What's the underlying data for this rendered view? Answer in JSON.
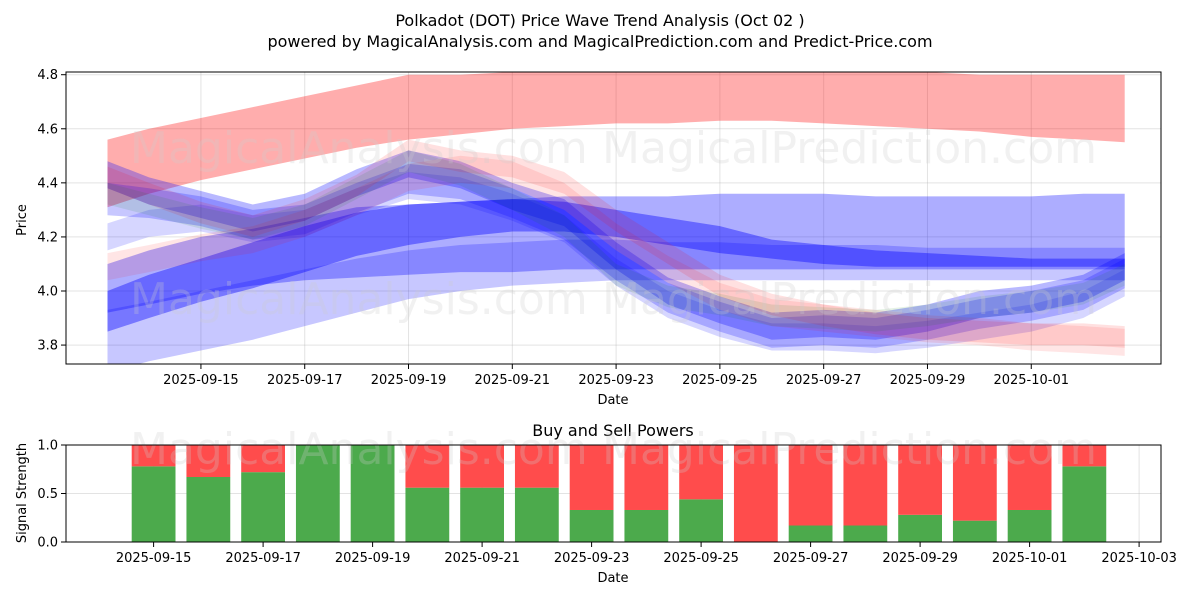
{
  "title": {
    "line1": "Polkadot (DOT) Price Wave Trend Analysis (Oct 02 )",
    "line2": "powered by MagicalAnalysis.com and MagicalPrediction.com and Predict-Price.com"
  },
  "watermarks": [
    "MagicalAnalysis.com",
    "MagicalPrediction.com"
  ],
  "chart_data": [
    {
      "type": "area",
      "title": "",
      "xlabel": "Date",
      "ylabel": "Price",
      "ylim": [
        3.73,
        4.81
      ],
      "grid": true,
      "x_ticks": [
        "2025-09-15",
        "2025-09-17",
        "2025-09-19",
        "2025-09-21",
        "2025-09-23",
        "2025-09-25",
        "2025-09-27",
        "2025-09-29",
        "2025-10-01"
      ],
      "y_ticks": [
        "3.8",
        "4.0",
        "4.2",
        "4.4",
        "4.6",
        "4.8"
      ],
      "x": [
        13.2,
        14,
        15,
        16,
        17,
        18,
        19,
        20,
        21,
        22,
        23,
        24,
        25,
        26,
        27,
        28,
        29,
        30,
        31,
        32,
        32.8
      ],
      "series": [
        {
          "name": "red upper band",
          "color": "#ff0000",
          "alpha": 0.32,
          "upper": [
            4.56,
            4.6,
            4.64,
            4.68,
            4.72,
            4.76,
            4.8,
            4.8,
            4.81,
            4.81,
            4.81,
            4.81,
            4.81,
            4.81,
            4.81,
            4.81,
            4.81,
            4.8,
            4.8,
            4.8,
            4.8
          ],
          "lower": [
            4.31,
            4.36,
            4.41,
            4.45,
            4.49,
            4.53,
            4.56,
            4.58,
            4.6,
            4.61,
            4.62,
            4.62,
            4.63,
            4.63,
            4.62,
            4.61,
            4.6,
            4.59,
            4.57,
            4.56,
            4.55
          ]
        },
        {
          "name": "blue rising band",
          "color": "#0000ff",
          "alpha": 0.32,
          "upper": [
            4.1,
            4.15,
            4.2,
            4.23,
            4.27,
            4.31,
            4.32,
            4.33,
            4.34,
            4.35,
            4.35,
            4.35,
            4.36,
            4.36,
            4.36,
            4.35,
            4.35,
            4.35,
            4.35,
            4.36,
            4.36
          ],
          "lower": [
            3.92,
            3.95,
            3.99,
            4.02,
            4.04,
            4.05,
            4.06,
            4.07,
            4.07,
            4.08,
            4.08,
            4.08,
            4.08,
            4.08,
            4.08,
            4.08,
            4.08,
            4.08,
            4.08,
            4.08,
            4.08
          ]
        },
        {
          "name": "blue trend band",
          "color": "#0000ff",
          "alpha": 0.4,
          "upper": [
            4.0,
            4.06,
            4.12,
            4.18,
            4.24,
            4.29,
            4.32,
            4.33,
            4.34,
            4.33,
            4.3,
            4.27,
            4.24,
            4.19,
            4.17,
            4.15,
            4.14,
            4.13,
            4.12,
            4.12,
            4.12
          ],
          "lower": [
            3.85,
            3.9,
            3.96,
            4.01,
            4.07,
            4.13,
            4.17,
            4.2,
            4.22,
            4.22,
            4.2,
            4.17,
            4.14,
            4.12,
            4.1,
            4.09,
            4.09,
            4.09,
            4.09,
            4.09,
            4.09
          ]
        },
        {
          "name": "light blue lower band",
          "color": "#0000ff",
          "alpha": 0.22,
          "upper": [
            3.93,
            3.96,
            4.0,
            4.04,
            4.08,
            4.12,
            4.15,
            4.17,
            4.18,
            4.19,
            4.19,
            4.18,
            4.18,
            4.17,
            4.17,
            4.17,
            4.16,
            4.16,
            4.16,
            4.16,
            4.16
          ],
          "lower": [
            3.7,
            3.74,
            3.78,
            3.82,
            3.87,
            3.92,
            3.97,
            4.0,
            4.02,
            4.03,
            4.04,
            4.04,
            4.04,
            4.04,
            4.04,
            4.04,
            4.04,
            4.04,
            4.04,
            4.04,
            4.04
          ]
        },
        {
          "name": "wave 1",
          "color": "#0000ff",
          "alpha": 0.28,
          "upper": [
            4.48,
            4.42,
            4.37,
            4.32,
            4.36,
            4.45,
            4.52,
            4.48,
            4.4,
            4.34,
            4.18,
            4.05,
            3.98,
            3.92,
            3.93,
            3.92,
            3.95,
            4.0,
            4.02,
            4.06,
            4.14
          ],
          "lower": [
            4.38,
            4.32,
            4.27,
            4.22,
            4.26,
            4.35,
            4.42,
            4.38,
            4.3,
            4.24,
            4.08,
            3.95,
            3.88,
            3.82,
            3.83,
            3.82,
            3.85,
            3.9,
            3.92,
            3.96,
            4.04
          ]
        },
        {
          "name": "wave 2",
          "color": "#0000ff",
          "alpha": 0.22,
          "upper": [
            4.4,
            4.38,
            4.35,
            4.3,
            4.32,
            4.4,
            4.47,
            4.45,
            4.38,
            4.3,
            4.15,
            4.03,
            3.96,
            3.9,
            3.91,
            3.9,
            3.93,
            3.97,
            4.0,
            4.04,
            4.12
          ],
          "lower": [
            4.28,
            4.27,
            4.24,
            4.19,
            4.21,
            4.29,
            4.36,
            4.34,
            4.27,
            4.19,
            4.04,
            3.92,
            3.85,
            3.79,
            3.8,
            3.79,
            3.82,
            3.86,
            3.89,
            3.93,
            4.01
          ]
        },
        {
          "name": "wave 3",
          "color": "#0000ff",
          "alpha": 0.16,
          "upper": [
            4.25,
            4.3,
            4.32,
            4.28,
            4.3,
            4.38,
            4.44,
            4.42,
            4.36,
            4.28,
            4.12,
            4.0,
            3.93,
            3.88,
            3.88,
            3.87,
            3.89,
            3.92,
            3.95,
            4.0,
            4.08
          ],
          "lower": [
            4.15,
            4.2,
            4.22,
            4.18,
            4.2,
            4.28,
            4.34,
            4.32,
            4.26,
            4.18,
            4.02,
            3.9,
            3.83,
            3.78,
            3.78,
            3.77,
            3.79,
            3.82,
            3.85,
            3.9,
            3.98
          ]
        },
        {
          "name": "wave 4",
          "color": "#ff0000",
          "alpha": 0.12,
          "upper": [
            4.46,
            4.4,
            4.33,
            4.28,
            4.34,
            4.43,
            4.56,
            4.52,
            4.5,
            4.44,
            4.3,
            4.18,
            4.06,
            3.99,
            3.95,
            3.92,
            3.9,
            3.89,
            3.88,
            3.88,
            3.87
          ],
          "lower": [
            4.38,
            4.32,
            4.25,
            4.2,
            4.26,
            4.35,
            4.48,
            4.44,
            4.42,
            4.36,
            4.22,
            4.1,
            3.98,
            3.91,
            3.87,
            3.84,
            3.82,
            3.81,
            3.8,
            3.8,
            3.79
          ]
        },
        {
          "name": "wave 5",
          "color": "#ff0000",
          "alpha": 0.1,
          "upper": [
            4.14,
            4.17,
            4.21,
            4.24,
            4.3,
            4.38,
            4.47,
            4.5,
            4.48,
            4.4,
            4.25,
            4.13,
            4.03,
            3.97,
            3.95,
            3.93,
            3.91,
            3.9,
            3.88,
            3.87,
            3.86
          ],
          "lower": [
            4.04,
            4.07,
            4.11,
            4.14,
            4.2,
            4.28,
            4.37,
            4.4,
            4.38,
            4.3,
            4.15,
            4.03,
            3.93,
            3.87,
            3.85,
            3.83,
            3.81,
            3.8,
            3.78,
            3.77,
            3.76
          ]
        },
        {
          "name": "wave 6",
          "color": "#008000",
          "alpha": 0.1,
          "upper": [
            4.4,
            4.36,
            4.31,
            4.27,
            4.32,
            4.42,
            4.52,
            4.47,
            4.38,
            4.28,
            4.1,
            4.02,
            3.99,
            3.95,
            3.94,
            3.93,
            3.95,
            3.98,
            4.0,
            4.03,
            4.1
          ],
          "lower": [
            4.32,
            4.28,
            4.23,
            4.19,
            4.24,
            4.34,
            4.44,
            4.39,
            4.3,
            4.2,
            4.02,
            3.94,
            3.91,
            3.87,
            3.86,
            3.85,
            3.87,
            3.9,
            3.92,
            3.95,
            4.02
          ]
        }
      ]
    },
    {
      "type": "bar",
      "title": "Buy and Sell Powers",
      "xlabel": "Date",
      "ylabel": "Signal Strength",
      "ylim": [
        0,
        1
      ],
      "grid": true,
      "x_ticks": [
        "2025-09-15",
        "2025-09-17",
        "2025-09-19",
        "2025-09-21",
        "2025-09-23",
        "2025-09-25",
        "2025-09-27",
        "2025-09-29",
        "2025-10-01",
        "2025-10-03"
      ],
      "y_ticks": [
        "0.0",
        "0.5",
        "1.0"
      ],
      "categories": [
        "2025-09-15",
        "2025-09-16",
        "2025-09-17",
        "2025-09-18",
        "2025-09-19",
        "2025-09-20",
        "2025-09-21",
        "2025-09-22",
        "2025-09-23",
        "2025-09-24",
        "2025-09-25",
        "2025-09-26",
        "2025-09-27",
        "2025-09-28",
        "2025-09-29",
        "2025-09-30",
        "2025-10-01",
        "2025-10-02"
      ],
      "series": [
        {
          "name": "Buy",
          "color": "#4caa4c",
          "values": [
            0.78,
            0.67,
            0.72,
            1.0,
            1.0,
            0.56,
            0.56,
            0.56,
            0.33,
            0.33,
            0.44,
            0.0,
            0.17,
            0.17,
            0.28,
            0.22,
            0.33,
            0.78
          ]
        },
        {
          "name": "Sell",
          "color": "#ff4c4c",
          "values": [
            0.22,
            0.33,
            0.28,
            0.0,
            0.0,
            0.44,
            0.44,
            0.44,
            0.67,
            0.67,
            0.56,
            1.0,
            0.83,
            0.83,
            0.72,
            0.78,
            0.67,
            0.22
          ]
        }
      ]
    }
  ]
}
